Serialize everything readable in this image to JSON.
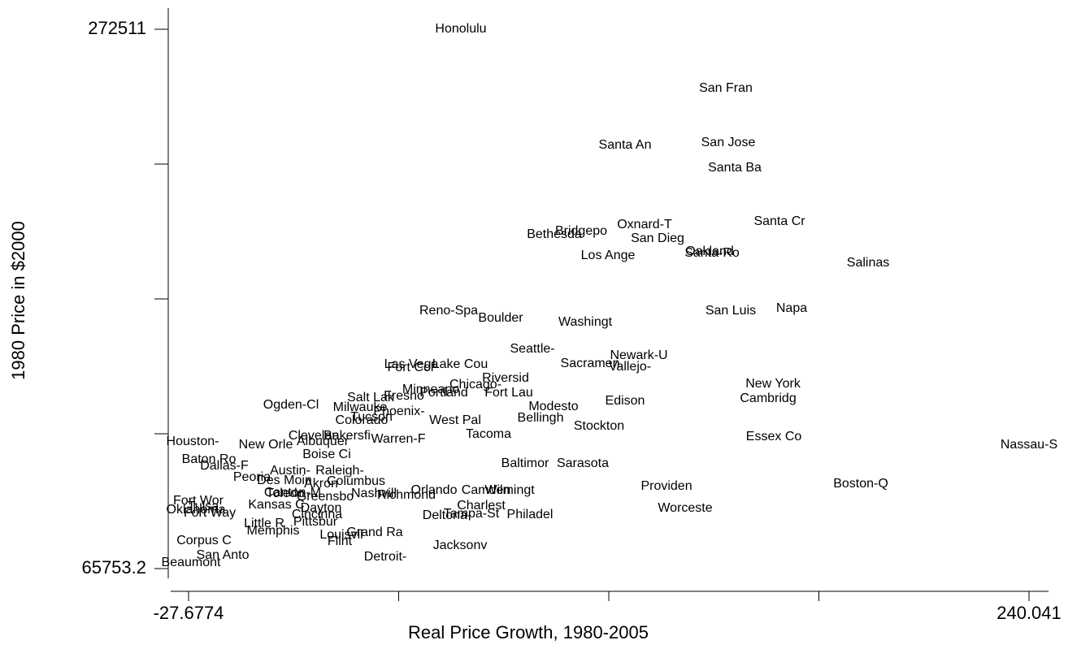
{
  "chart_data": {
    "type": "scatter",
    "x_label": "Real Price Growth, 1980-2005",
    "y_label": "1980 Price in $2000",
    "xlim": [
      -27.6774,
      240.041
    ],
    "ylim": [
      65753.2,
      272511
    ],
    "xticks": [
      -27.6774,
      {
        "value": 39.25,
        "label": null
      },
      {
        "value": 106.18,
        "label": null
      },
      {
        "value": 173.11,
        "label": null
      },
      240.041
    ],
    "yticks": [
      65753.2,
      {
        "value": 117442.65,
        "label": null
      },
      {
        "value": 169132.1,
        "label": null
      },
      {
        "value": 220821.55,
        "label": null
      },
      272511
    ],
    "points": [
      {
        "label": "Honolulu",
        "x": 59.06,
        "y": 272511
      },
      {
        "label": "San Fran",
        "x": 143.47,
        "y": 249779
      },
      {
        "label": "Santa An",
        "x": 111.36,
        "y": 227982
      },
      {
        "label": "San Jose",
        "x": 144.24,
        "y": 228916
      },
      {
        "label": "Santa Ba",
        "x": 146.32,
        "y": 219263
      },
      {
        "label": "Santa Cr",
        "x": 160.56,
        "y": 198712
      },
      {
        "label": "Oxnard-T",
        "x": 117.58,
        "y": 197467
      },
      {
        "label": "Bridgepo",
        "x": 97.38,
        "y": 194976
      },
      {
        "label": "Bethesda",
        "x": 88.84,
        "y": 193730
      },
      {
        "label": "San Dieg",
        "x": 121.72,
        "y": 192173
      },
      {
        "label": "Oakland",
        "x": 138.29,
        "y": 187191
      },
      {
        "label": "Santa-Ro",
        "x": 139.07,
        "y": 186568
      },
      {
        "label": "Los Ange",
        "x": 105.93,
        "y": 185634
      },
      {
        "label": "Salinas",
        "x": 188.78,
        "y": 182832
      },
      {
        "label": "Reno-Spa",
        "x": 55.18,
        "y": 164460
      },
      {
        "label": "Boulder",
        "x": 71.75,
        "y": 161658
      },
      {
        "label": "Washingt",
        "x": 98.68,
        "y": 160101
      },
      {
        "label": "San Luis",
        "x": 145.02,
        "y": 164460
      },
      {
        "label": "Napa",
        "x": 164.44,
        "y": 165395
      },
      {
        "label": "Seattle-",
        "x": 81.85,
        "y": 149826
      },
      {
        "label": "Newark-U",
        "x": 115.77,
        "y": 147335
      },
      {
        "label": "Sacramen",
        "x": 100.23,
        "y": 144221
      },
      {
        "label": "Vallejo-",
        "x": 112.92,
        "y": 142975
      },
      {
        "label": "Las Vega",
        "x": 43.27,
        "y": 143909
      },
      {
        "label": "Lake Cou",
        "x": 58.8,
        "y": 143909
      },
      {
        "label": "Fort Col",
        "x": 43.01,
        "y": 142664
      },
      {
        "label": "Riversid",
        "x": 73.3,
        "y": 138616
      },
      {
        "label": "Chicago-",
        "x": 63.72,
        "y": 136125
      },
      {
        "label": "Minneapo",
        "x": 49.48,
        "y": 134257
      },
      {
        "label": "Portland",
        "x": 53.62,
        "y": 133011
      },
      {
        "label": "Fort Lau",
        "x": 74.34,
        "y": 133011
      },
      {
        "label": "New York",
        "x": 158.49,
        "y": 136436
      },
      {
        "label": "Cambridg",
        "x": 156.94,
        "y": 130831
      },
      {
        "label": "Salt Lak",
        "x": 30.32,
        "y": 131143
      },
      {
        "label": "Fresno",
        "x": 40.94,
        "y": 131766
      },
      {
        "label": "Milwauke",
        "x": 26.96,
        "y": 127406
      },
      {
        "label": "Phoenix-",
        "x": 39.38,
        "y": 125849
      },
      {
        "label": "Modesto",
        "x": 88.58,
        "y": 127718
      },
      {
        "label": "Edison",
        "x": 111.36,
        "y": 129897
      },
      {
        "label": "Ogden-Cl",
        "x": 4.95,
        "y": 128340
      },
      {
        "label": "Colorado",
        "x": 27.47,
        "y": 122424
      },
      {
        "label": "Tucson",
        "x": 30.58,
        "y": 123670
      },
      {
        "label": "West Pal",
        "x": 57.25,
        "y": 122424
      },
      {
        "label": "Bellingh",
        "x": 84.44,
        "y": 123358
      },
      {
        "label": "Stockton",
        "x": 103.08,
        "y": 120245
      },
      {
        "label": "Tacoma",
        "x": 67.87,
        "y": 117131
      },
      {
        "label": "Clevelan",
        "x": 12.2,
        "y": 116508
      },
      {
        "label": "Bakersfi",
        "x": 22.81,
        "y": 116508
      },
      {
        "label": "Albuquer",
        "x": 15.05,
        "y": 114328
      },
      {
        "label": "Warren-F",
        "x": 39.13,
        "y": 115262
      },
      {
        "label": "Essex Co",
        "x": 158.75,
        "y": 116197
      },
      {
        "label": "Nassau-S",
        "x": 240.041,
        "y": 113083
      },
      {
        "label": "Houston-",
        "x": -26.38,
        "y": 114328
      },
      {
        "label": "New Orle",
        "x": -3.08,
        "y": 113083
      },
      {
        "label": "Boise Ci",
        "x": 16.34,
        "y": 109346
      },
      {
        "label": "Baton Ro",
        "x": -21.2,
        "y": 107478
      },
      {
        "label": "Dallas-F",
        "x": -16.29,
        "y": 104987
      },
      {
        "label": "Baltimor",
        "x": 79.52,
        "y": 105921
      },
      {
        "label": "Sarasota",
        "x": 97.9,
        "y": 105921
      },
      {
        "label": "Austin-",
        "x": 4.69,
        "y": 103119
      },
      {
        "label": "Raleigh-",
        "x": 20.48,
        "y": 103119
      },
      {
        "label": "Peoria",
        "x": -7.48,
        "y": 100628
      },
      {
        "label": "Des Moin",
        "x": 2.88,
        "y": 99382
      },
      {
        "label": "Columbus",
        "x": 25.66,
        "y": 99071
      },
      {
        "label": "Providen",
        "x": 124.57,
        "y": 97202
      },
      {
        "label": "Boston-Q",
        "x": 186.45,
        "y": 98137
      },
      {
        "label": "Orlando",
        "x": 50.52,
        "y": 95645
      },
      {
        "label": "Wilmingt",
        "x": 74.6,
        "y": 95645
      },
      {
        "label": "Camden",
        "x": 67.09,
        "y": 95645
      },
      {
        "label": "Nashvill",
        "x": 31.36,
        "y": 94400
      },
      {
        "label": "Richmond",
        "x": 41.71,
        "y": 93777
      },
      {
        "label": "Fort Wor",
        "x": -24.57,
        "y": 91598
      },
      {
        "label": "Greensbo",
        "x": 15.82,
        "y": 93154
      },
      {
        "label": "Charlest",
        "x": 65.53,
        "y": 89729
      },
      {
        "label": "Kansas C",
        "x": 0.29,
        "y": 90041
      },
      {
        "label": "Tulsa",
        "x": -23.02,
        "y": 89418
      },
      {
        "label": "Oklahoma",
        "x": -25.35,
        "y": 88172
      },
      {
        "label": "Fort Way",
        "x": -20.94,
        "y": 86927
      },
      {
        "label": "Worceste",
        "x": 130.52,
        "y": 88795
      },
      {
        "label": "Tampa-St",
        "x": 62.43,
        "y": 86615
      },
      {
        "label": "Philadel",
        "x": 81.07,
        "y": 86304
      },
      {
        "label": "Deltona-",
        "x": 54.66,
        "y": 85993
      },
      {
        "label": "Little R",
        "x": -3.6,
        "y": 82879
      },
      {
        "label": "Pittsbur",
        "x": 12.72,
        "y": 83502
      },
      {
        "label": "Memphis",
        "x": -0.75,
        "y": 80076
      },
      {
        "label": "Grand Ra",
        "x": 31.62,
        "y": 79454
      },
      {
        "label": "Louisvil",
        "x": 21.0,
        "y": 78520
      },
      {
        "label": "Flint",
        "x": 20.48,
        "y": 76029
      },
      {
        "label": "Jacksonv",
        "x": 58.8,
        "y": 74472
      },
      {
        "label": "Corpus C",
        "x": -22.76,
        "y": 76340
      },
      {
        "label": "San Anto",
        "x": -16.8,
        "y": 70735
      },
      {
        "label": "Detroit-",
        "x": 34.98,
        "y": 70112
      },
      {
        "label": "Beaumont",
        "x": -26.9,
        "y": 67933
      },
      {
        "label": "Akron",
        "x": 14.53,
        "y": 98137
      },
      {
        "label": "Canton-M",
        "x": 5.46,
        "y": 94711
      },
      {
        "label": "Toledo",
        "x": 3.13,
        "y": 94400
      },
      {
        "label": "Dayton",
        "x": 14.53,
        "y": 88795
      },
      {
        "label": "Cincinna",
        "x": 13.23,
        "y": 86304
      }
    ]
  }
}
